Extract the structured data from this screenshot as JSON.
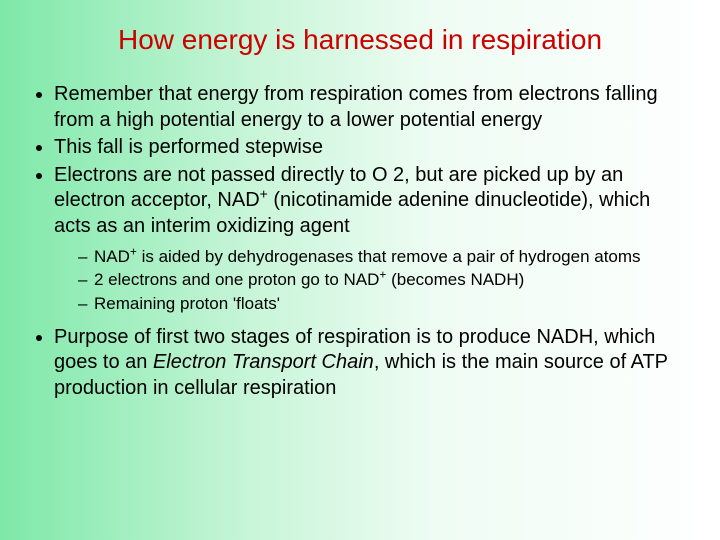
{
  "colors": {
    "title": "#cc0000",
    "body_text": "#000000",
    "bg_gradient_start": "#7ee8a8",
    "bg_gradient_mid1": "#c8f5d8",
    "bg_gradient_mid2": "#eefcf3",
    "bg_gradient_end": "#ffffff"
  },
  "typography": {
    "title_fontsize": 28,
    "bullet_fontsize": 20,
    "sub_bullet_fontsize": 17,
    "font_family": "Arial"
  },
  "title": "How energy is harnessed in respiration",
  "bullets": {
    "b1": "Remember that energy from respiration comes from electrons falling from a high potential energy to a lower potential energy",
    "b2": "This fall is performed stepwise",
    "b3_pre": "Electrons are not passed directly to O 2, but are picked up by an electron acceptor, NAD",
    "b3_sup": "+",
    "b3_post": " (nicotinamide adenine dinucleotide), which acts as an interim oxidizing agent",
    "b4_pre": "Purpose of first two stages of respiration is to produce NADH, which goes to an ",
    "b4_italic": "Electron Transport Chain",
    "b4_post": ", which is the main source of ATP production in cellular respiration"
  },
  "sub_bullets": {
    "s1_pre": "NAD",
    "s1_sup": "+",
    "s1_post": " is aided by dehydrogenases that remove a pair of hydrogen atoms",
    "s2_pre": "2 electrons and one proton go to NAD",
    "s2_sup": "+",
    "s2_post": " (becomes NADH)",
    "s3": "Remaining proton 'floats'"
  }
}
